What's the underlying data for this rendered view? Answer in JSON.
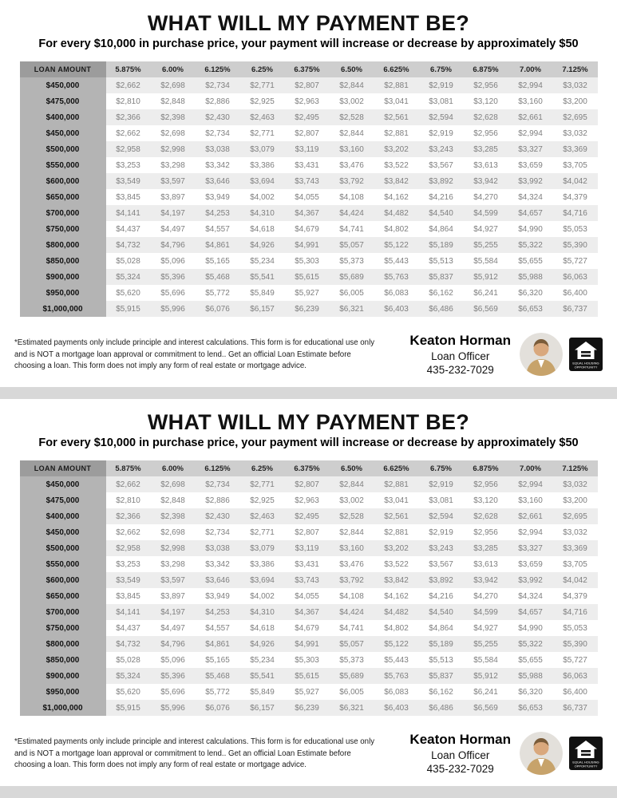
{
  "flyer": {
    "title": "WHAT WILL MY PAYMENT BE?",
    "subtitle": "For every $10,000 in purchase price, your payment will increase or decrease by approximately $50",
    "disclaimer": "*Estimated payments only include principle and interest calculations. This form is for educational use only and is NOT a mortgage loan approval or commitment to lend.. Get an official Loan Estimate before choosing a loan.   This form does not imply any form of real estate or mortgage advice.",
    "contact": {
      "name": "Keaton Horman",
      "role": "Loan Officer",
      "phone": "435-232-7029"
    },
    "eho_logo": {
      "line1": "EQUAL HOUSING",
      "line2": "OPPORTUNITY"
    }
  },
  "chart_data": {
    "type": "table",
    "title": "WHAT WILL MY PAYMENT BE?",
    "columns": [
      "LOAN AMOUNT",
      "5.875%",
      "6.00%",
      "6.125%",
      "6.25%",
      "6.375%",
      "6.50%",
      "6.625%",
      "6.75%",
      "6.875%",
      "7.00%",
      "7.125%"
    ],
    "rows": [
      [
        "$450,000",
        "$2,662",
        "$2,698",
        "$2,734",
        "$2,771",
        "$2,807",
        "$2,844",
        "$2,881",
        "$2,919",
        "$2,956",
        "$2,994",
        "$3,032"
      ],
      [
        "$475,000",
        "$2,810",
        "$2,848",
        "$2,886",
        "$2,925",
        "$2,963",
        "$3,002",
        "$3,041",
        "$3,081",
        "$3,120",
        "$3,160",
        "$3,200"
      ],
      [
        "$400,000",
        "$2,366",
        "$2,398",
        "$2,430",
        "$2,463",
        "$2,495",
        "$2,528",
        "$2,561",
        "$2,594",
        "$2,628",
        "$2,661",
        "$2,695"
      ],
      [
        "$450,000",
        "$2,662",
        "$2,698",
        "$2,734",
        "$2,771",
        "$2,807",
        "$2,844",
        "$2,881",
        "$2,919",
        "$2,956",
        "$2,994",
        "$3,032"
      ],
      [
        "$500,000",
        "$2,958",
        "$2,998",
        "$3,038",
        "$3,079",
        "$3,119",
        "$3,160",
        "$3,202",
        "$3,243",
        "$3,285",
        "$3,327",
        "$3,369"
      ],
      [
        "$550,000",
        "$3,253",
        "$3,298",
        "$3,342",
        "$3,386",
        "$3,431",
        "$3,476",
        "$3,522",
        "$3,567",
        "$3,613",
        "$3,659",
        "$3,705"
      ],
      [
        "$600,000",
        "$3,549",
        "$3,597",
        "$3,646",
        "$3,694",
        "$3,743",
        "$3,792",
        "$3,842",
        "$3,892",
        "$3,942",
        "$3,992",
        "$4,042"
      ],
      [
        "$650,000",
        "$3,845",
        "$3,897",
        "$3,949",
        "$4,002",
        "$4,055",
        "$4,108",
        "$4,162",
        "$4,216",
        "$4,270",
        "$4,324",
        "$4,379"
      ],
      [
        "$700,000",
        "$4,141",
        "$4,197",
        "$4,253",
        "$4,310",
        "$4,367",
        "$4,424",
        "$4,482",
        "$4,540",
        "$4,599",
        "$4,657",
        "$4,716"
      ],
      [
        "$750,000",
        "$4,437",
        "$4,497",
        "$4,557",
        "$4,618",
        "$4,679",
        "$4,741",
        "$4,802",
        "$4,864",
        "$4,927",
        "$4,990",
        "$5,053"
      ],
      [
        "$800,000",
        "$4,732",
        "$4,796",
        "$4,861",
        "$4,926",
        "$4,991",
        "$5,057",
        "$5,122",
        "$5,189",
        "$5,255",
        "$5,322",
        "$5,390"
      ],
      [
        "$850,000",
        "$5,028",
        "$5,096",
        "$5,165",
        "$5,234",
        "$5,303",
        "$5,373",
        "$5,443",
        "$5,513",
        "$5,584",
        "$5,655",
        "$5,727"
      ],
      [
        "$900,000",
        "$5,324",
        "$5,396",
        "$5,468",
        "$5,541",
        "$5,615",
        "$5,689",
        "$5,763",
        "$5,837",
        "$5,912",
        "$5,988",
        "$6,063"
      ],
      [
        "$950,000",
        "$5,620",
        "$5,696",
        "$5,772",
        "$5,849",
        "$5,927",
        "$6,005",
        "$6,083",
        "$6,162",
        "$6,241",
        "$6,320",
        "$6,400"
      ],
      [
        "$1,000,000",
        "$5,915",
        "$5,996",
        "$6,076",
        "$6,157",
        "$6,239",
        "$6,321",
        "$6,403",
        "$6,486",
        "$6,569",
        "$6,653",
        "$6,737"
      ]
    ]
  }
}
